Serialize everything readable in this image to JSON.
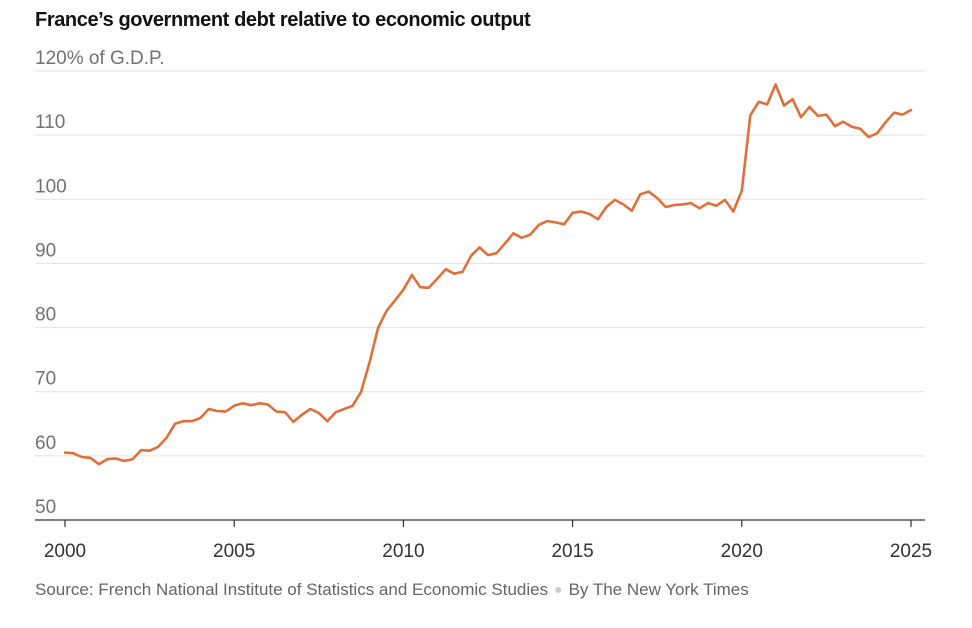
{
  "title": "France’s government debt relative to economic output",
  "footer": {
    "source": "Source: French National Institute of Statistics and Economic Studies",
    "byline": "By The New York Times"
  },
  "colors": {
    "line": "#e0703a",
    "grid": "#e2e2e2",
    "axis": "#333333"
  },
  "chart_data": {
    "type": "line",
    "title": "France’s government debt relative to economic output",
    "ylabel": "",
    "xlabel": "",
    "ylim": [
      50,
      120
    ],
    "xlim": [
      2000,
      2025.25
    ],
    "yticks": [
      50,
      60,
      70,
      80,
      90,
      100,
      110,
      120
    ],
    "ytick_labels": [
      "50",
      "60",
      "70",
      "80",
      "90",
      "100",
      "110",
      "120% of G.D.P."
    ],
    "xticks": [
      2000,
      2005,
      2010,
      2015,
      2020,
      2025
    ],
    "xtick_labels": [
      "2000",
      "2005",
      "2010",
      "2015",
      "2020",
      "2025"
    ],
    "grid": true,
    "series": [
      {
        "x": [
          2000,
          2000.25,
          2000.5,
          2000.75,
          2001,
          2001.25,
          2001.5,
          2001.75,
          2002,
          2002.25,
          2002.5,
          2002.75,
          2003,
          2003.25,
          2003.5,
          2003.75,
          2004,
          2004.25,
          2004.5,
          2004.75,
          2005,
          2005.25,
          2005.5,
          2005.75,
          2006,
          2006.25,
          2006.5,
          2006.75,
          2007,
          2007.25,
          2007.5,
          2007.75,
          2008,
          2008.25,
          2008.5,
          2008.75,
          2009,
          2009.25,
          2009.5,
          2009.75,
          2010,
          2010.25,
          2010.5,
          2010.75,
          2011,
          2011.25,
          2011.5,
          2011.75,
          2012,
          2012.25,
          2012.5,
          2012.75,
          2013,
          2013.25,
          2013.5,
          2013.75,
          2014,
          2014.25,
          2014.5,
          2014.75,
          2015,
          2015.25,
          2015.5,
          2015.75,
          2016,
          2016.25,
          2016.5,
          2016.75,
          2017,
          2017.25,
          2017.5,
          2017.75,
          2018,
          2018.25,
          2018.5,
          2018.75,
          2019,
          2019.25,
          2019.5,
          2019.75,
          2020,
          2020.25,
          2020.5,
          2020.75,
          2021,
          2021.25,
          2021.5,
          2021.75,
          2022,
          2022.25,
          2022.5,
          2022.75,
          2023,
          2023.25,
          2023.5,
          2023.75,
          2024,
          2024.25,
          2024.5,
          2024.75,
          2025
        ],
        "values": [
          60.5,
          60.4,
          59.8,
          59.7,
          58.7,
          59.5,
          59.6,
          59.2,
          59.5,
          60.9,
          60.8,
          61.4,
          62.8,
          65.0,
          65.4,
          65.4,
          65.9,
          67.3,
          67.0,
          66.9,
          67.8,
          68.2,
          67.9,
          68.2,
          68.0,
          66.9,
          66.8,
          65.3,
          66.4,
          67.3,
          66.7,
          65.4,
          66.8,
          67.3,
          67.8,
          70.0,
          74.6,
          79.9,
          82.6,
          84.2,
          85.9,
          88.2,
          86.3,
          86.2,
          87.6,
          89.1,
          88.4,
          88.7,
          91.2,
          92.5,
          91.3,
          91.6,
          93.1,
          94.7,
          94.0,
          94.5,
          96.0,
          96.6,
          96.4,
          96.1,
          97.9,
          98.1,
          97.7,
          96.9,
          98.8,
          99.9,
          99.2,
          98.2,
          100.8,
          101.2,
          100.2,
          98.8,
          99.1,
          99.2,
          99.4,
          98.6,
          99.4,
          99.0,
          99.9,
          98.1,
          101.3,
          113.1,
          115.2,
          114.8,
          117.9,
          114.6,
          115.6,
          112.8,
          114.4,
          113.0,
          113.2,
          111.4,
          112.1,
          111.3,
          111.0,
          109.7,
          110.3,
          112.0,
          113.5,
          113.2,
          113.9
        ]
      }
    ]
  }
}
